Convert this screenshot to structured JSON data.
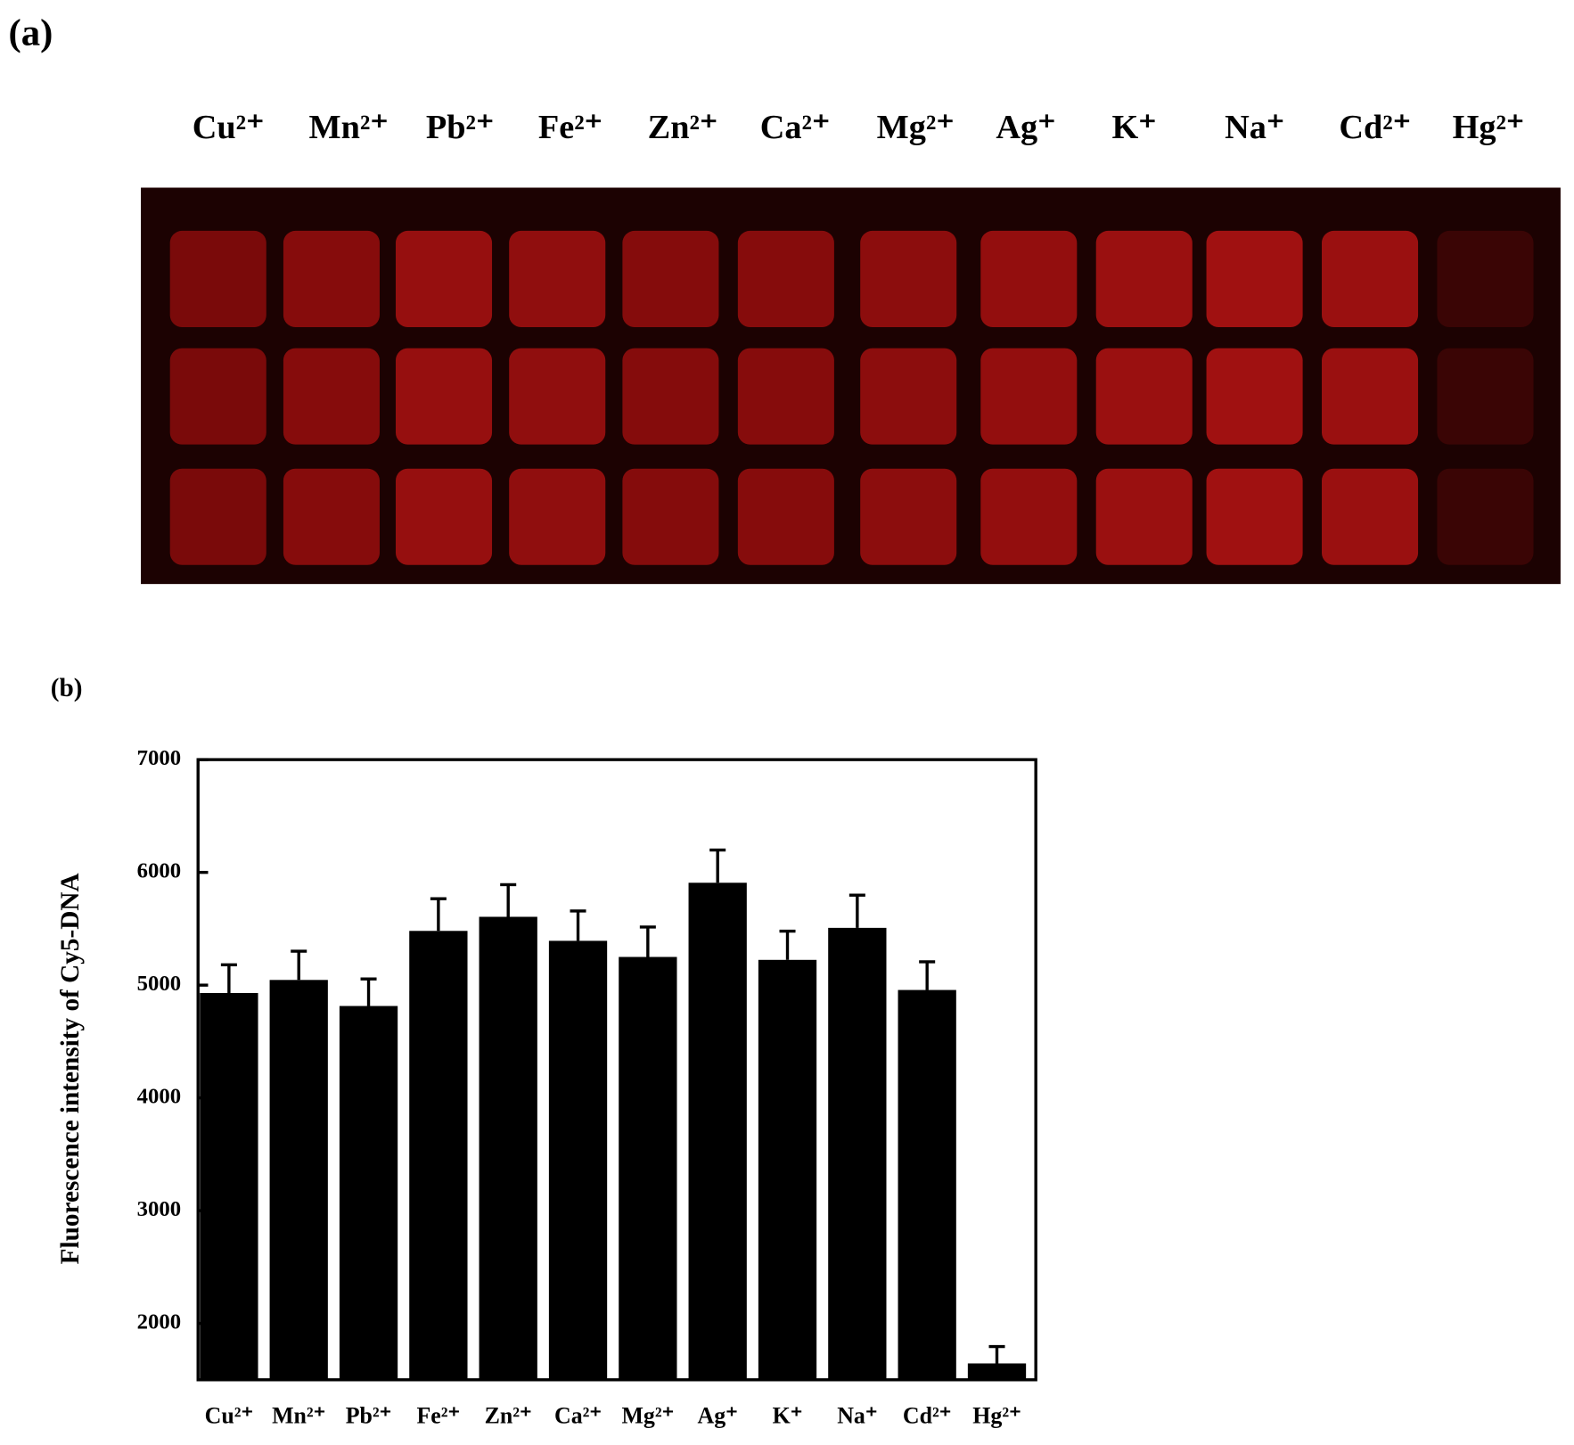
{
  "panel_a": {
    "label": "(a)",
    "ions": [
      "Cu²⁺",
      "Mn²⁺",
      "Pb²⁺",
      "Fe²⁺",
      "Zn²⁺",
      "Ca²⁺",
      "Mg²⁺",
      "Ag⁺",
      "K⁺",
      "Na⁺",
      "Cd²⁺",
      "Hg²⁺"
    ]
  },
  "chart_data": {
    "type": "bar",
    "panel_label": "(b)",
    "ylabel": "Fluorescence intensity of Cy5-DNA",
    "categories": [
      "Cu²⁺",
      "Mn²⁺",
      "Pb²⁺",
      "Fe²⁺",
      "Zn²⁺",
      "Ca²⁺",
      "Mg²⁺",
      "Ag⁺",
      "K⁺",
      "Na⁺",
      "Cd²⁺",
      "Hg²⁺"
    ],
    "values": [
      4930,
      5046,
      4815,
      5481,
      5606,
      5393,
      5250,
      5908,
      5224,
      5508,
      4957,
      1645
    ],
    "errors": [
      250,
      255,
      240,
      285,
      285,
      265,
      265,
      290,
      255,
      290,
      250,
      150
    ],
    "color": "#000000",
    "ylim": [
      1500,
      7000
    ],
    "yticks": [
      2000,
      3000,
      4000,
      5000,
      6000,
      7000
    ]
  }
}
